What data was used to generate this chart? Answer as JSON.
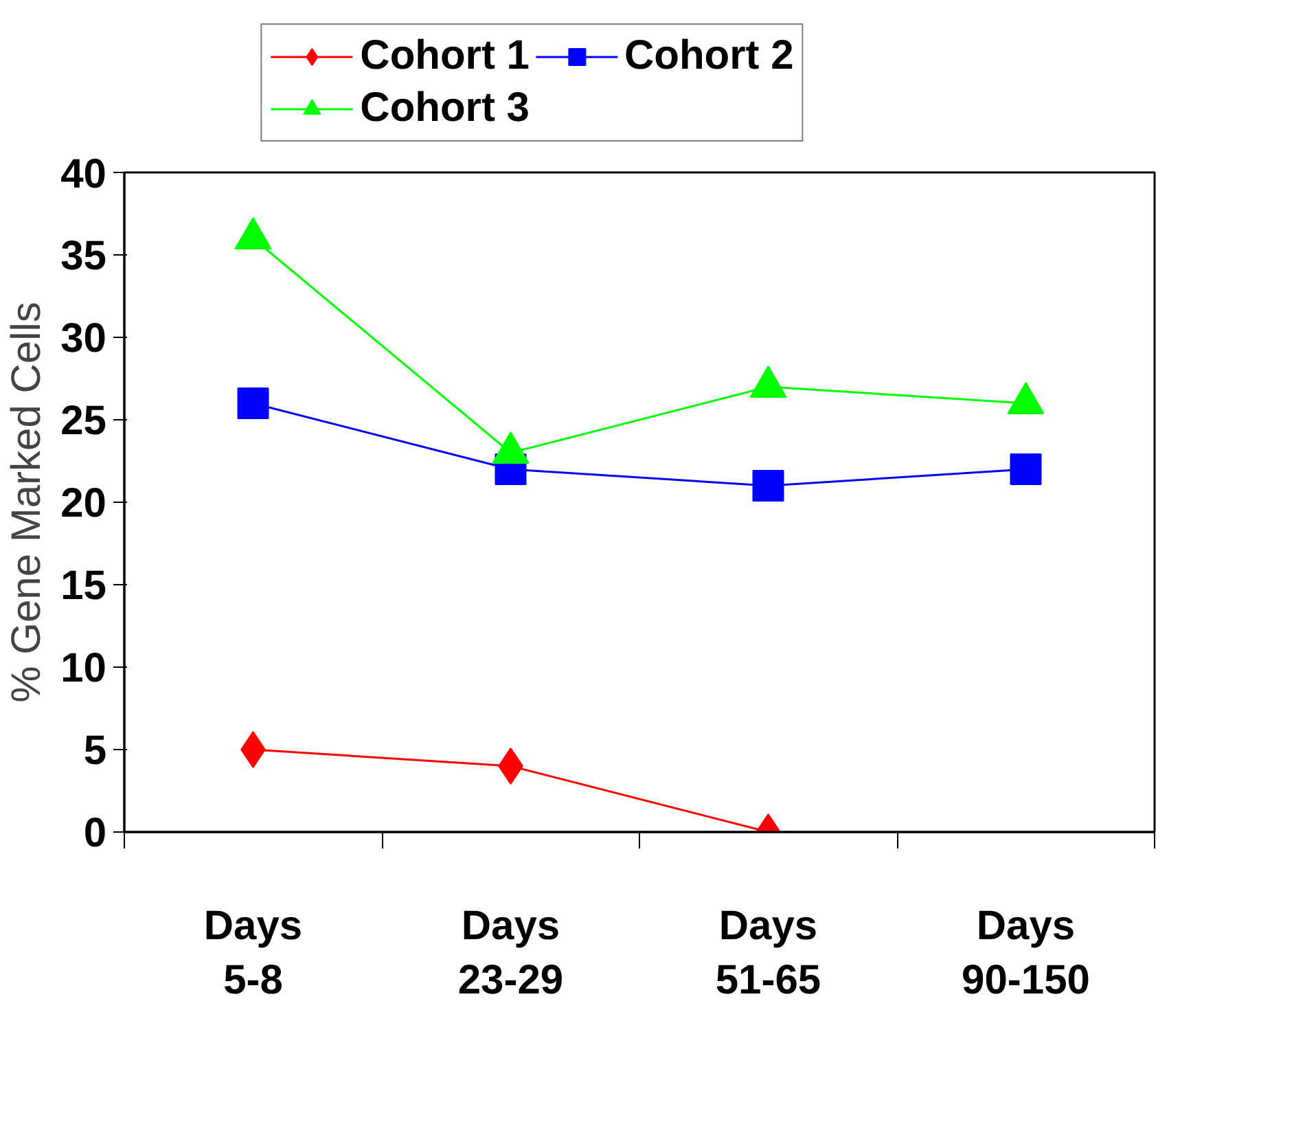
{
  "chart_data": {
    "type": "line",
    "ylabel": "% Gene Marked Cells",
    "categories": [
      "Days\n5-8",
      "Days\n23-29",
      "Days\n51-65",
      "Days\n90-150"
    ],
    "series": [
      {
        "name": "Cohort 1",
        "color": "#ff0000",
        "marker": "diamond",
        "values": [
          5,
          4,
          0,
          null
        ]
      },
      {
        "name": "Cohort 2",
        "color": "#0000ff",
        "marker": "square",
        "values": [
          26,
          22,
          21,
          22
        ]
      },
      {
        "name": "Cohort 3",
        "color": "#00ff00",
        "marker": "triangle",
        "values": [
          36,
          23,
          27,
          26
        ]
      }
    ],
    "ylim": [
      0,
      40
    ],
    "yticks": [
      0,
      5,
      10,
      15,
      20,
      25,
      30,
      35,
      40
    ],
    "grid": false,
    "legend": "top",
    "line_style": "solid"
  }
}
